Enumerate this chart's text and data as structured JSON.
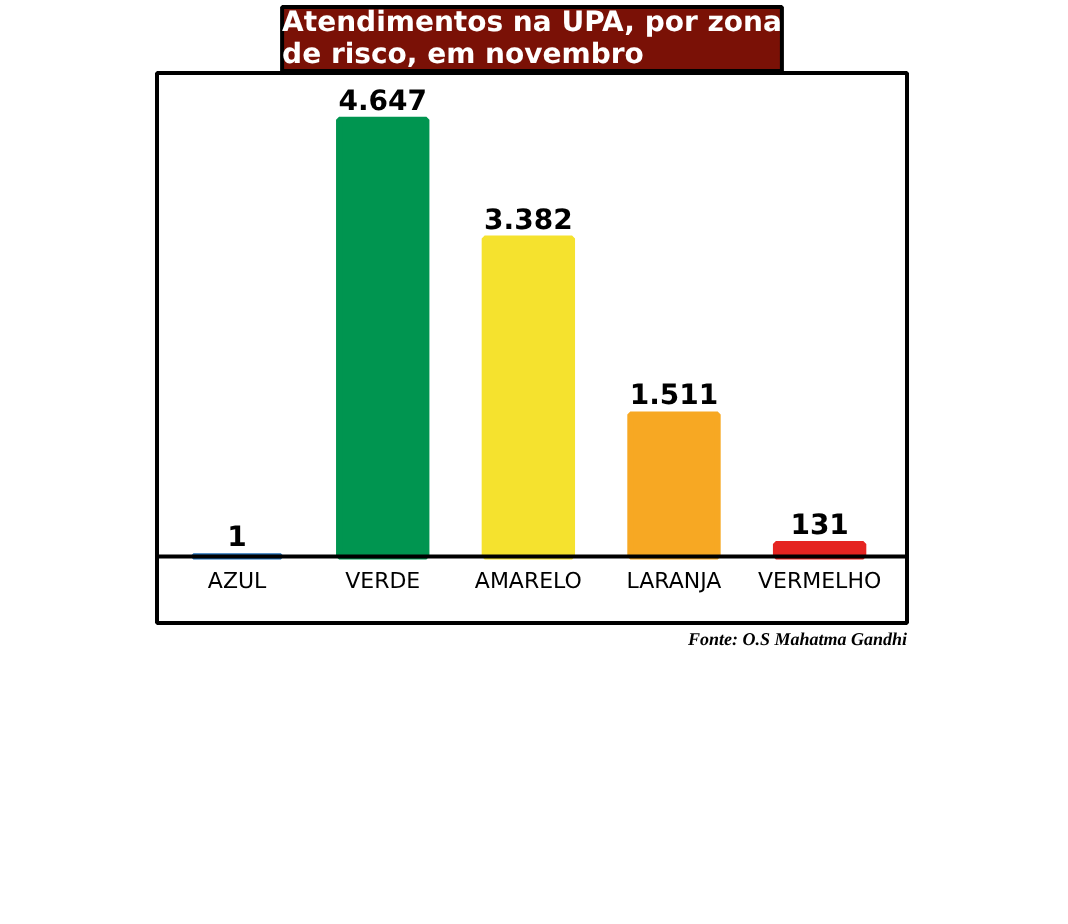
{
  "chart_data": {
    "type": "bar",
    "title": "Atendimentos na UPA, por zona\nde risco, em novembro",
    "categories": [
      "AZUL",
      "VERDE",
      "AMARELO",
      "LARANJA",
      "VERMELHO"
    ],
    "values": [
      1,
      4647,
      3382,
      1511,
      131
    ],
    "colors": [
      "#1f6db5",
      "#009550",
      "#f5e22e",
      "#f7a823",
      "#e52421"
    ],
    "value_labels": [
      "1",
      "4.647",
      "3.382",
      "1.511",
      "131"
    ],
    "annotations": [
      "Fonte: O.S Mahatma Gandhi"
    ]
  }
}
